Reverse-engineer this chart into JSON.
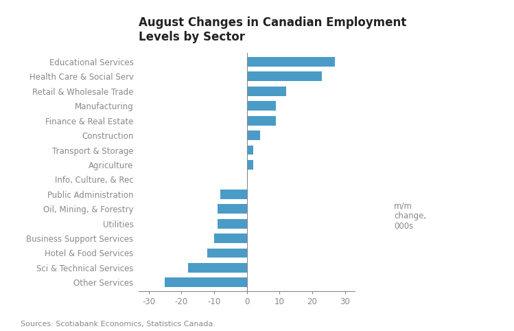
{
  "title": "August Changes in Canadian Employment\nLevels by Sector",
  "categories": [
    "Other Services",
    "Sci & Technical Services",
    "Hotel & Food Services",
    "Business Support Services",
    "Utilities",
    "Oil, Mining, & Forestry",
    "Public Administration",
    "Info, Culture, & Rec",
    "Agriculture",
    "Transport & Storage",
    "Construction",
    "Finance & Real Estate",
    "Manufacturing",
    "Retail & Wholesale Trade",
    "Health Care & Social Serv",
    "Educational Services"
  ],
  "values": [
    -25,
    -18,
    -12,
    -10,
    -9,
    -9,
    -8,
    0,
    2,
    2,
    4,
    9,
    9,
    12,
    23,
    27
  ],
  "bar_color": "#4a9cc7",
  "xlim": [
    -33,
    33
  ],
  "xticks": [
    -30,
    -20,
    -10,
    0,
    10,
    20,
    30
  ],
  "annotation": "m/m\nchange,\n000s",
  "source": "Sources: Scotiabank Economics, Statistics Canada.",
  "background_color": "#ffffff",
  "title_fontsize": 12,
  "tick_fontsize": 8.5,
  "source_fontsize": 8,
  "label_color": "#888888",
  "spine_color": "#888888"
}
